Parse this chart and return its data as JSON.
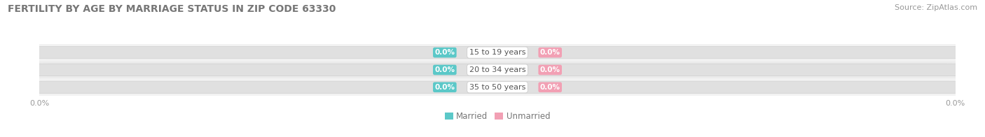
{
  "title": "FERTILITY BY AGE BY MARRIAGE STATUS IN ZIP CODE 63330",
  "source": "Source: ZipAtlas.com",
  "categories": [
    "15 to 19 years",
    "20 to 34 years",
    "35 to 50 years"
  ],
  "married_values": [
    0.0,
    0.0,
    0.0
  ],
  "unmarried_values": [
    0.0,
    0.0,
    0.0
  ],
  "married_color": "#5BC8C8",
  "unmarried_color": "#F2A0B4",
  "bar_bg_color": "#E8E8E8",
  "title_fontsize": 10,
  "source_fontsize": 8,
  "background_color": "#FFFFFF",
  "xlim": [
    -1.0,
    1.0
  ]
}
